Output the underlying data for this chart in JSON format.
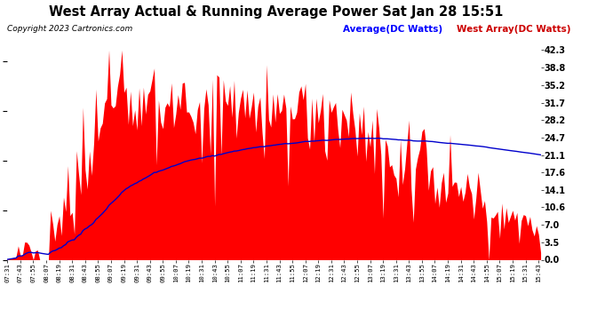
{
  "title": "West Array Actual & Running Average Power Sat Jan 28 15:51",
  "copyright": "Copyright 2023 Cartronics.com",
  "legend_avg": "Average(DC Watts)",
  "legend_west": "West Array(DC Watts)",
  "ylabel_right": [
    "42.3",
    "38.8",
    "35.2",
    "31.7",
    "28.2",
    "24.7",
    "21.1",
    "17.6",
    "14.1",
    "10.6",
    "7.0",
    "3.5",
    "0.0"
  ],
  "yticks": [
    42.3,
    38.8,
    35.2,
    31.7,
    28.2,
    24.7,
    21.1,
    17.6,
    14.1,
    10.6,
    7.0,
    3.5,
    0.0
  ],
  "ymax": 44.0,
  "ymin": 0.0,
  "background_color": "#ffffff",
  "bar_color": "#ff0000",
  "avg_color": "#0000cc",
  "grid_color": "#cccccc",
  "title_color": "#000000",
  "copyright_color": "#000000",
  "legend_avg_color": "#0000ff",
  "legend_west_color": "#cc0000"
}
